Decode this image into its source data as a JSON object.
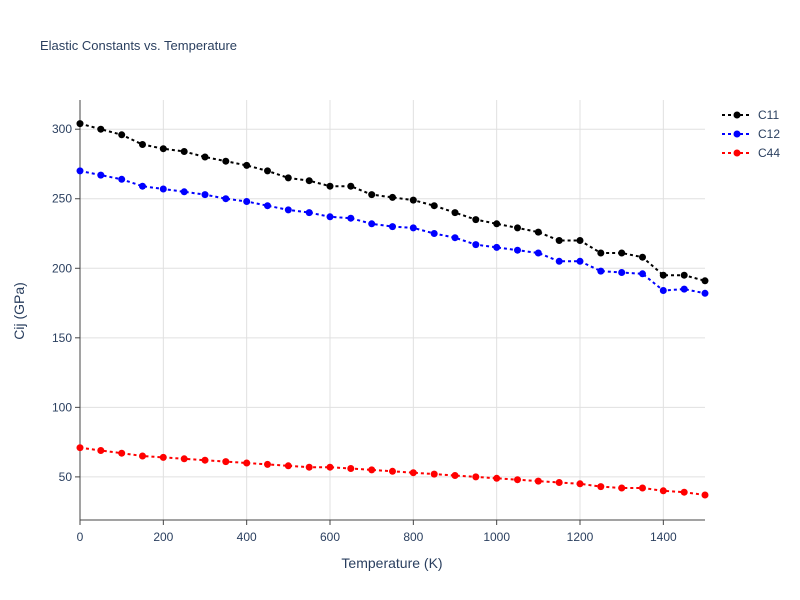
{
  "chart_data": {
    "type": "line",
    "title": "Elastic Constants vs. Temperature",
    "xlabel": "Temperature (K)",
    "ylabel": "Cij (GPa)",
    "xlim": [
      0,
      1500
    ],
    "ylim": [
      19,
      321
    ],
    "xticks": [
      0,
      200,
      400,
      600,
      800,
      1000,
      1200,
      1400
    ],
    "yticks": [
      50,
      100,
      150,
      200,
      250,
      300
    ],
    "grid": true,
    "legend_position": "top-right",
    "line_style": "dotted",
    "marker": "circle",
    "x": [
      0,
      50,
      100,
      150,
      200,
      250,
      300,
      350,
      400,
      450,
      500,
      550,
      600,
      650,
      700,
      750,
      800,
      850,
      900,
      950,
      1000,
      1050,
      1100,
      1150,
      1200,
      1250,
      1300,
      1350,
      1400,
      1450,
      1500
    ],
    "series": [
      {
        "name": "C11",
        "color": "#000000",
        "values": [
          304,
          300,
          296,
          289,
          286,
          284,
          280,
          277,
          274,
          270,
          265,
          263,
          259,
          259,
          253,
          251,
          249,
          245,
          240,
          235,
          232,
          229,
          226,
          220,
          220,
          211,
          211,
          208,
          195,
          195,
          191
        ]
      },
      {
        "name": "C12",
        "color": "#0000ff",
        "values": [
          270,
          267,
          264,
          259,
          257,
          255,
          253,
          250,
          248,
          245,
          242,
          240,
          237,
          236,
          232,
          230,
          229,
          225,
          222,
          217,
          215,
          213,
          211,
          205,
          205,
          198,
          197,
          196,
          184,
          185,
          182
        ]
      },
      {
        "name": "C44",
        "color": "#ff0000",
        "values": [
          71,
          69,
          67,
          65,
          64,
          63,
          62,
          61,
          60,
          59,
          58,
          57,
          57,
          56,
          55,
          54,
          53,
          52,
          51,
          50,
          49,
          48,
          47,
          46,
          45,
          43,
          42,
          42,
          40,
          39,
          37
        ]
      }
    ]
  }
}
